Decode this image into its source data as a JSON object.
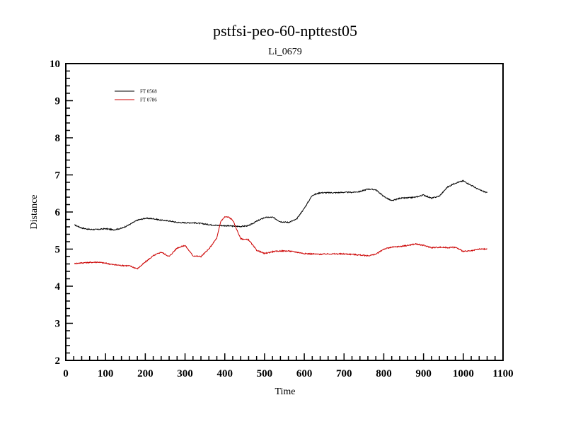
{
  "chart_data": {
    "type": "line",
    "title": "pstfsi-peo-60-npttest05",
    "subtitle": "Li_0679",
    "xlabel": "Time",
    "ylabel": "Distance",
    "xlim": [
      0,
      1100
    ],
    "ylim": [
      2,
      10
    ],
    "x_ticks": [
      0,
      100,
      200,
      300,
      400,
      500,
      600,
      700,
      800,
      900,
      1000,
      1100
    ],
    "y_ticks": [
      2,
      3,
      4,
      5,
      6,
      7,
      8,
      9,
      10
    ],
    "grid": false,
    "legend_position": "top-left",
    "series": [
      {
        "name": "FT 0568",
        "color": "#000000",
        "x": [
          22,
          40,
          60,
          80,
          100,
          120,
          140,
          160,
          180,
          200,
          220,
          240,
          260,
          280,
          300,
          320,
          340,
          360,
          380,
          400,
          420,
          440,
          460,
          480,
          500,
          520,
          540,
          560,
          580,
          600,
          620,
          640,
          660,
          680,
          700,
          720,
          740,
          760,
          780,
          800,
          820,
          840,
          860,
          880,
          900,
          920,
          940,
          960,
          980,
          1000,
          1020,
          1040,
          1060
        ],
        "y": [
          5.65,
          5.57,
          5.53,
          5.53,
          5.55,
          5.52,
          5.56,
          5.66,
          5.78,
          5.83,
          5.82,
          5.78,
          5.76,
          5.72,
          5.71,
          5.71,
          5.69,
          5.66,
          5.64,
          5.63,
          5.62,
          5.61,
          5.63,
          5.75,
          5.85,
          5.86,
          5.74,
          5.72,
          5.8,
          6.1,
          6.45,
          6.52,
          6.52,
          6.52,
          6.53,
          6.53,
          6.55,
          6.62,
          6.6,
          6.42,
          6.3,
          6.37,
          6.38,
          6.4,
          6.46,
          6.37,
          6.43,
          6.67,
          6.78,
          6.84,
          6.72,
          6.6,
          6.52
        ]
      },
      {
        "name": "FT 0786",
        "color": "#cc0000",
        "x": [
          22,
          40,
          60,
          80,
          100,
          120,
          140,
          160,
          180,
          200,
          220,
          240,
          260,
          280,
          300,
          320,
          340,
          360,
          380,
          390,
          400,
          410,
          420,
          440,
          460,
          480,
          500,
          520,
          540,
          560,
          580,
          600,
          620,
          640,
          660,
          680,
          700,
          720,
          740,
          760,
          780,
          800,
          820,
          840,
          860,
          880,
          900,
          920,
          940,
          960,
          980,
          1000,
          1020,
          1040,
          1060
        ],
        "y": [
          4.61,
          4.63,
          4.64,
          4.65,
          4.62,
          4.58,
          4.56,
          4.55,
          4.47,
          4.65,
          4.82,
          4.92,
          4.8,
          5.03,
          5.1,
          4.82,
          4.8,
          5.0,
          5.3,
          5.75,
          5.87,
          5.86,
          5.78,
          5.28,
          5.25,
          4.97,
          4.88,
          4.93,
          4.95,
          4.95,
          4.92,
          4.88,
          4.87,
          4.86,
          4.87,
          4.87,
          4.87,
          4.86,
          4.84,
          4.82,
          4.86,
          5.0,
          5.05,
          5.07,
          5.1,
          5.14,
          5.1,
          5.04,
          5.05,
          5.04,
          5.05,
          4.94,
          4.95,
          5.0,
          5.0
        ]
      }
    ]
  }
}
